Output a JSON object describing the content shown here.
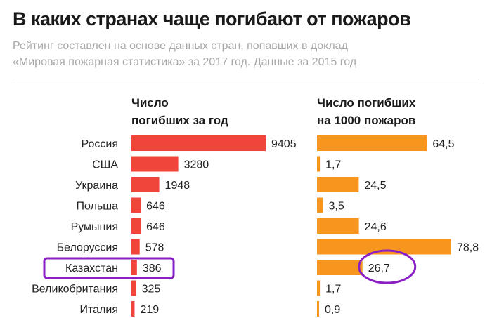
{
  "title": "В каких странах чаще погибают от пожаров",
  "subtitle_lines": [
    "Рейтинг составлен на основе данных стран, попавших в доклад",
    "«Мировая пожарная статистика» за 2017 год. Данные за 2015 год"
  ],
  "colors": {
    "deaths": "#f0453a",
    "per_1000": "#f7961f",
    "annotation": "#8a1fc4"
  },
  "chart_data": [
    {
      "type": "bar",
      "orientation": "horizontal",
      "title_lines": [
        "Число",
        "погибших за год"
      ],
      "categories": [
        "Россия",
        "США",
        "Украина",
        "Польша",
        "Румыния",
        "Белоруссия",
        "Казахстан",
        "Великобритания",
        "Италия"
      ],
      "values": [
        9405,
        3280,
        1948,
        646,
        646,
        578,
        386,
        325,
        219
      ],
      "value_labels": [
        "9405",
        "3280",
        "1948",
        "646",
        "646",
        "578",
        "386",
        "325",
        "219"
      ],
      "xlim": [
        0,
        9405
      ],
      "grid": false,
      "highlighted": "Казахстан"
    },
    {
      "type": "bar",
      "orientation": "horizontal",
      "title_lines": [
        "Число погибших",
        "на 1000 пожаров"
      ],
      "categories": [
        "Россия",
        "США",
        "Украина",
        "Польша",
        "Румыния",
        "Белоруссия",
        "Казахстан",
        "Великобритания",
        "Италия"
      ],
      "values": [
        64.5,
        1.7,
        24.5,
        3.5,
        24.6,
        78.8,
        26.7,
        1.7,
        0.9
      ],
      "value_labels": [
        "64,5",
        "1,7",
        "24,5",
        "3,5",
        "24,6",
        "78,8",
        "26,7",
        "1,7",
        "0,9"
      ],
      "xlim": [
        0,
        78.8
      ],
      "grid": false,
      "highlighted": "Казахстан"
    }
  ]
}
